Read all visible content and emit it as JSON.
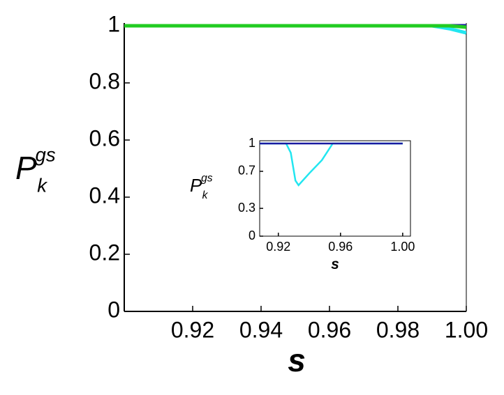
{
  "chart_data": [
    {
      "type": "line",
      "xlabel": "s",
      "ylabel": "P",
      "ylabel_sup": "gs",
      "ylabel_sub": "k",
      "x": [
        0.9,
        0.99,
        0.995,
        1.0
      ],
      "series": [
        {
          "color": "#22e6f0",
          "values": [
            1,
            1,
            0.99,
            0.975
          ]
        },
        {
          "color": "#1a1aa0",
          "values": [
            1,
            1,
            1,
            1
          ]
        },
        {
          "color": "#22cc22",
          "values": [
            1,
            1,
            1,
            0.995
          ]
        }
      ],
      "xlim": [
        0.9,
        1.0
      ],
      "ylim": [
        0,
        1
      ],
      "xticks": [
        0.92,
        0.94,
        0.96,
        0.98,
        {
          "value": 1.0,
          "label": "1.00"
        }
      ],
      "yticks": [
        0,
        0.2,
        0.4,
        0.6,
        0.8,
        1
      ]
    },
    {
      "type": "line",
      "xlabel": "s",
      "ylabel": "P",
      "ylabel_sup": "gs",
      "ylabel_sub": "k",
      "x": [
        0.908,
        0.925,
        0.928,
        0.931,
        0.933,
        0.94,
        0.948,
        0.955,
        1.0
      ],
      "series": [
        {
          "color": "#22e6f0",
          "values": [
            1,
            1,
            0.9,
            0.6,
            0.55,
            0.68,
            0.82,
            1,
            1
          ]
        },
        {
          "color": "#1a1aa0",
          "values": [
            1,
            1,
            1,
            1,
            1,
            1,
            1,
            1,
            1
          ]
        }
      ],
      "xlim": [
        0.908,
        1.005
      ],
      "ylim": [
        0,
        1
      ],
      "xticks": [
        0.92,
        0.96,
        {
          "value": 1.0,
          "label": "1.00"
        }
      ],
      "yticks": [
        0,
        0.3,
        0.7,
        1
      ]
    }
  ]
}
